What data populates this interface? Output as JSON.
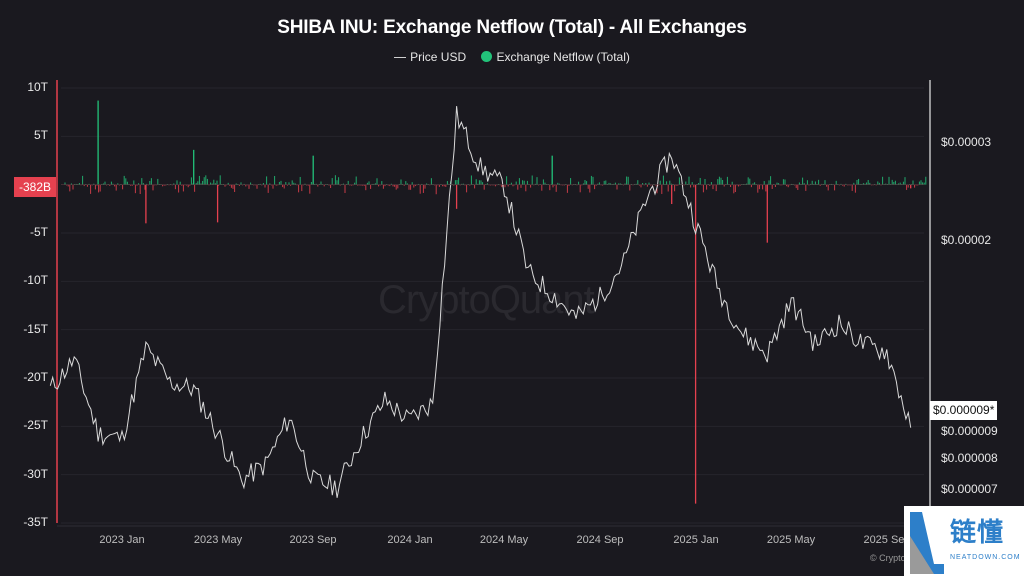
{
  "header": {
    "title": "SHIBA INU: Exchange Netflow (Total) - All Exchanges",
    "legend": [
      {
        "label": "Price USD",
        "swatch": "line",
        "color": "#cfcfcf"
      },
      {
        "label": "Exchange Netflow (Total)",
        "swatch": "dot",
        "color": "#22c37a"
      }
    ]
  },
  "axes": {
    "left_ticks": [
      "10T",
      "5T",
      "-5T",
      "-10T",
      "-15T",
      "-20T",
      "-25T",
      "-30T",
      "-35T"
    ],
    "right_ticks": [
      "$0.00003",
      "$0.00002",
      "$0.000009",
      "$0.000008",
      "$0.000007"
    ],
    "x_ticks": [
      "2023 Jan",
      "2023 May",
      "2023 Sep",
      "2024 Jan",
      "2024 May",
      "2024 Sep",
      "2025 Jan",
      "2025 May",
      "2025 Sep"
    ]
  },
  "markers": {
    "current_netflow": "-382B",
    "current_price": "$0.000009*"
  },
  "watermark": "CryptoQuant",
  "copyright": "© CryptoQuant",
  "badge": {
    "cn": "链懂",
    "en": "NEATDOWN.COM"
  },
  "colors": {
    "background": "#1a191f",
    "positive": "#22c37a",
    "negative": "#e5414f",
    "price": "#d9d9d9"
  },
  "chart_data": {
    "type": "bar+line",
    "title": "SHIBA INU: Exchange Netflow (Total) - All Exchanges",
    "xlabel": "",
    "ylabel_left": "Exchange Netflow (Total)",
    "ylabel_right": "Price USD",
    "ylim_left": [
      -35,
      10
    ],
    "ylim_left_unit": "T (trillion SHIB)",
    "right_scale": "log",
    "x_range": [
      "2022-10",
      "2025-10"
    ],
    "legend_position": "top-center",
    "grid": true,
    "series": [
      {
        "name": "Price USD",
        "type": "line",
        "x": [
          "2022-10",
          "2022-11",
          "2022-12",
          "2023-01",
          "2023-02",
          "2023-03",
          "2023-04",
          "2023-05",
          "2023-06",
          "2023-07",
          "2023-08",
          "2023-09",
          "2023-10",
          "2023-11",
          "2023-12",
          "2024-01",
          "2024-02",
          "2024-03",
          "2024-04",
          "2024-05",
          "2024-06",
          "2024-07",
          "2024-08",
          "2024-09",
          "2024-10",
          "2024-11",
          "2024-12",
          "2025-01",
          "2025-02",
          "2025-03",
          "2025-04",
          "2025-05",
          "2025-06",
          "2025-07",
          "2025-08",
          "2025-09",
          "2025-10"
        ],
        "values": [
          1.08e-05,
          1.22e-05,
          9e-06,
          8.8e-06,
          1.28e-05,
          1.11e-05,
          1.08e-05,
          9e-06,
          7.4e-06,
          7.9e-06,
          9.6e-06,
          7.4e-06,
          7.2e-06,
          8.8e-06,
          1.03e-05,
          9.5e-06,
          1.02e-05,
          3.35e-05,
          2.7e-05,
          2.5e-05,
          1.75e-05,
          1.6e-05,
          1.45e-05,
          1.58e-05,
          1.83e-05,
          2.4e-05,
          2.85e-05,
          2.15e-05,
          1.62e-05,
          1.35e-05,
          1.25e-05,
          1.55e-05,
          1.3e-05,
          1.42e-05,
          1.3e-05,
          1.26e-05,
          9.2e-06
        ]
      },
      {
        "name": "Exchange Netflow (Total)",
        "type": "bar",
        "unit": "T",
        "notable_points": [
          {
            "x": "2022-12",
            "value": 8.7
          },
          {
            "x": "2023-02",
            "value": -4.0
          },
          {
            "x": "2023-04",
            "value": 3.6
          },
          {
            "x": "2023-05",
            "value": -3.9
          },
          {
            "x": "2023-09",
            "value": 3.0
          },
          {
            "x": "2024-03",
            "value": -2.5
          },
          {
            "x": "2024-07",
            "value": 3.0
          },
          {
            "x": "2024-12",
            "value": -2.0
          },
          {
            "x": "2025-01",
            "value": -33.0
          },
          {
            "x": "2025-04",
            "value": -6.0
          },
          {
            "x": "2025-10",
            "value": -0.382
          }
        ]
      }
    ]
  }
}
